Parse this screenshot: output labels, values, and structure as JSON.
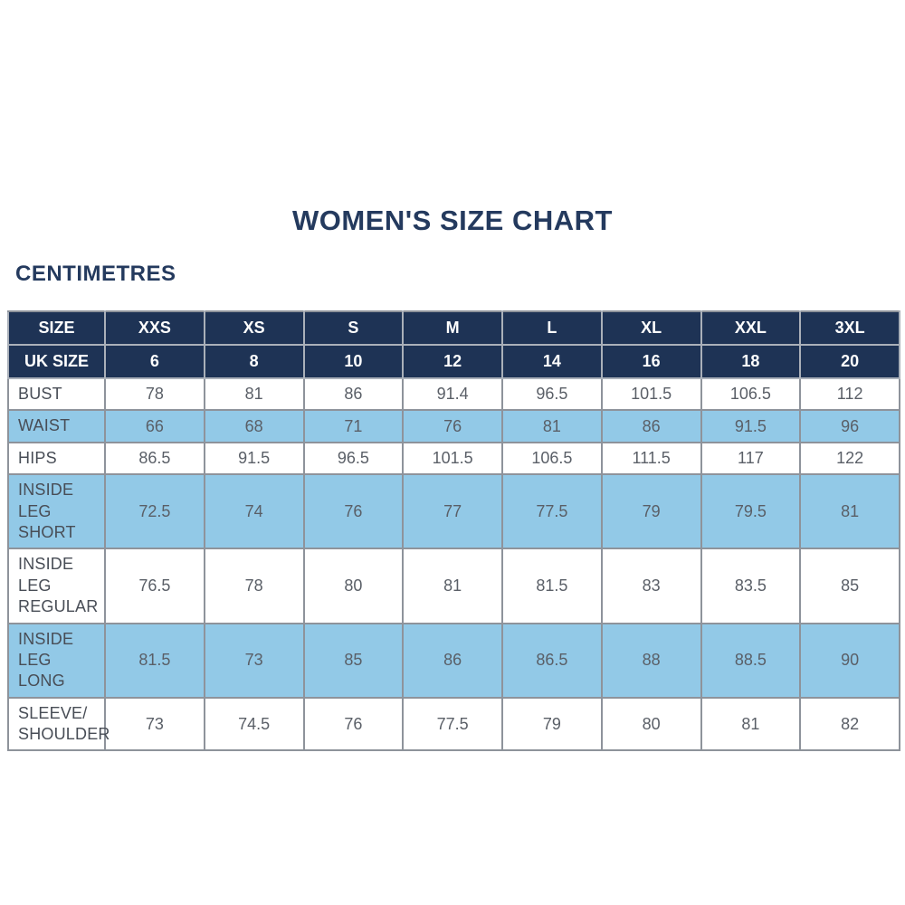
{
  "page": {
    "title": "WOMEN'S SIZE CHART",
    "units_label": "CENTIMETRES"
  },
  "colors": {
    "navy": "#1e3355",
    "light_blue": "#92c9e7",
    "title_text": "#243a5e",
    "label_text": "#484d56",
    "value_text": "#5a5f67",
    "border": "#8e939b",
    "page_bg": "#ffffff"
  },
  "chart_data": {
    "type": "table",
    "title": "WOMEN'S SIZE CHART",
    "units_label": "CENTIMETRES",
    "header_rows": [
      {
        "label": "SIZE",
        "values": [
          "XXS",
          "XS",
          "S",
          "M",
          "L",
          "XL",
          "XXL",
          "3XL"
        ]
      },
      {
        "label": "UK SIZE",
        "values": [
          "6",
          "8",
          "10",
          "12",
          "14",
          "16",
          "18",
          "20"
        ]
      }
    ],
    "rows": [
      {
        "label": "BUST",
        "shaded": false,
        "values": [
          "78",
          "81",
          "86",
          "91.4",
          "96.5",
          "101.5",
          "106.5",
          "112"
        ]
      },
      {
        "label": "WAIST",
        "shaded": true,
        "values": [
          "66",
          "68",
          "71",
          "76",
          "81",
          "86",
          "91.5",
          "96"
        ]
      },
      {
        "label": "HIPS",
        "shaded": false,
        "values": [
          "86.5",
          "91.5",
          "96.5",
          "101.5",
          "106.5",
          "111.5",
          "117",
          "122"
        ]
      },
      {
        "label": "INSIDE LEG SHORT",
        "shaded": true,
        "values": [
          "72.5",
          "74",
          "76",
          "77",
          "77.5",
          "79",
          "79.5",
          "81"
        ]
      },
      {
        "label": "INSIDE LEG REGULAR",
        "shaded": false,
        "values": [
          "76.5",
          "78",
          "80",
          "81",
          "81.5",
          "83",
          "83.5",
          "85"
        ]
      },
      {
        "label": "INSIDE LEG LONG",
        "shaded": true,
        "values": [
          "81.5",
          "73",
          "85",
          "86",
          "86.5",
          "88",
          "88.5",
          "90"
        ]
      },
      {
        "label": "SLEEVE/ SHOULDER",
        "shaded": false,
        "values": [
          "73",
          "74.5",
          "76",
          "77.5",
          "79",
          "80",
          "81",
          "82"
        ]
      }
    ]
  }
}
